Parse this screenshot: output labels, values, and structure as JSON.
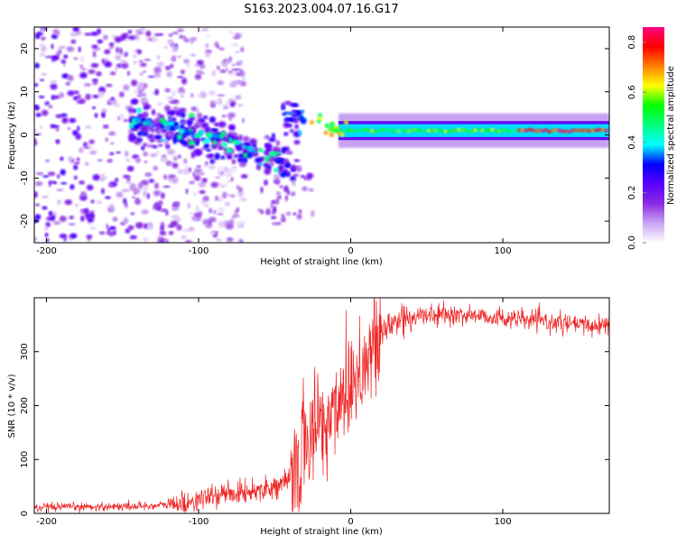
{
  "figure_title": "S163.2023.004.07.16.G17",
  "chart_data": [
    {
      "type": "heatmap",
      "title": "S163.2023.004.07.16.G17",
      "xlabel": "Height of straight line (km)",
      "ylabel": "Frequency (Hz)",
      "xlim": [
        -208,
        170
      ],
      "ylim": [
        -25,
        25
      ],
      "x_ticks": [
        -200,
        -100,
        0,
        100
      ],
      "y_ticks": [
        -20,
        -10,
        0,
        10,
        20
      ],
      "grid": false,
      "colorbar": {
        "label": "Normalized spectral amplitude",
        "range": [
          0.0,
          0.86
        ],
        "ticks": [
          0.0,
          0.2,
          0.4,
          0.6,
          0.8
        ],
        "colors": [
          "#ffffff",
          "#c9a4f2",
          "#8a2be2",
          "#5a00ff",
          "#0000ff",
          "#00ffff",
          "#00ff80",
          "#00ff00",
          "#ffff00",
          "#ff8000",
          "#ff0000",
          "#ff0080"
        ]
      },
      "features": {
        "stable_tone": {
          "x_range": [
            0,
            170
          ],
          "frequency": 1.0,
          "amplitude": 0.55,
          "peak_x_range": [
            110,
            170
          ],
          "peak_amplitude": 0.86
        },
        "descending_track": [
          {
            "x": -145,
            "frequency": 3.0
          },
          {
            "x": -110,
            "frequency": 1.0
          },
          {
            "x": -85,
            "frequency": -1.0
          },
          {
            "x": -65,
            "frequency": -4.0
          },
          {
            "x": -45,
            "frequency": -6.0
          }
        ],
        "upper_blob": {
          "x_range": [
            -45,
            -30
          ],
          "frequency": 4.5
        },
        "scatter_region": {
          "x_range": [
            -208,
            -100
          ],
          "frequency_range": [
            -25,
            25
          ],
          "amplitude": 0.15
        }
      }
    },
    {
      "type": "line",
      "xlabel": "Height of straight line (km)",
      "ylabel": "SNR (10 * v/v)",
      "xlim": [
        -208,
        170
      ],
      "ylim": [
        0,
        400
      ],
      "x_ticks": [
        -200,
        -100,
        0,
        100
      ],
      "y_ticks": [
        0,
        100,
        200,
        300
      ],
      "grid": false,
      "color": "#ee2222",
      "series": [
        {
          "x": [
            -208,
            -180,
            -150,
            -130,
            -110,
            -100,
            -90,
            -80,
            -70,
            -60,
            -50,
            -40,
            -35,
            -30,
            -25,
            -20,
            -15,
            -10,
            -5,
            0,
            5,
            10,
            15,
            20,
            25,
            30,
            40,
            60,
            80,
            100,
            120,
            140,
            160,
            170
          ],
          "y": [
            10,
            12,
            13,
            14,
            18,
            25,
            32,
            38,
            38,
            45,
            50,
            60,
            90,
            130,
            150,
            175,
            160,
            200,
            230,
            245,
            265,
            285,
            300,
            330,
            345,
            358,
            365,
            368,
            368,
            362,
            358,
            352,
            348,
            350
          ]
        }
      ]
    }
  ]
}
